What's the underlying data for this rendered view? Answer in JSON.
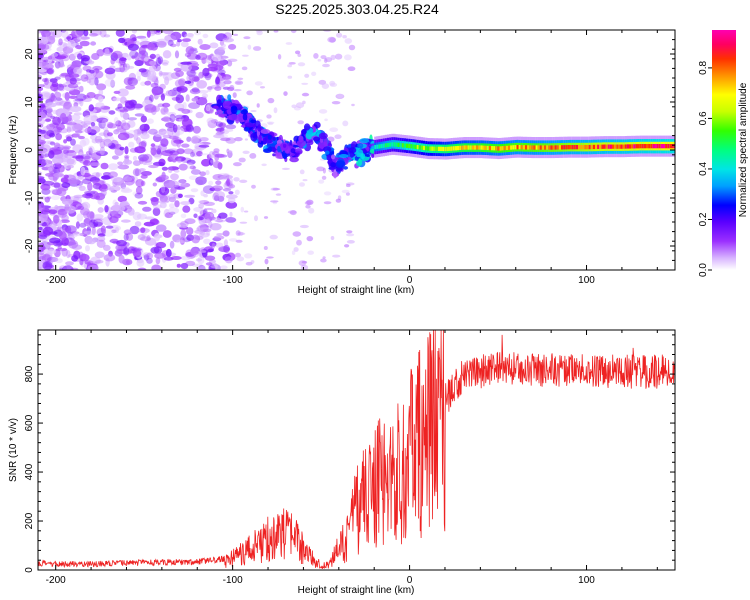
{
  "title": "S225.2025.303.04.25.R24",
  "chart_data": [
    {
      "type": "heatmap",
      "name": "spectrogram",
      "xlabel": "Height of straight line (km)",
      "ylabel": "Frequency (Hz)",
      "xlim": [
        -210,
        150
      ],
      "ylim": [
        -25,
        25
      ],
      "xticks": [
        -200,
        -100,
        0,
        100
      ],
      "yticks": [
        -20,
        -10,
        0,
        10,
        20
      ],
      "x_tick_labels": [
        "-200",
        "-100",
        "0",
        "100"
      ],
      "y_tick_labels": [
        "-20",
        "-10",
        "0",
        "10",
        "20"
      ],
      "colorbar": {
        "label": "Normalized spectral amplitude",
        "range": [
          0,
          0.95
        ],
        "ticks": [
          0.0,
          0.2,
          0.4,
          0.6,
          0.8
        ],
        "tick_labels": [
          "0.0",
          "0.2",
          "0.4",
          "0.6",
          "0.8"
        ],
        "colors": [
          "#ffffff",
          "#d8b4ff",
          "#9b30ff",
          "#5a00ff",
          "#0000ff",
          "#00a0ff",
          "#00e5e5",
          "#00ff7f",
          "#32ff00",
          "#c8ff00",
          "#ffff00",
          "#ffa000",
          "#ff3000",
          "#ff0060",
          "#ff00b0"
        ]
      },
      "ridge": [
        {
          "x": -110,
          "y": 9,
          "a": 0.25
        },
        {
          "x": -102,
          "y": 8.5,
          "a": 0.3
        },
        {
          "x": -95,
          "y": 7.5,
          "a": 0.28
        },
        {
          "x": -88,
          "y": 4.5,
          "a": 0.27
        },
        {
          "x": -80,
          "y": 2.0,
          "a": 0.3
        },
        {
          "x": -72,
          "y": 0.5,
          "a": 0.26
        },
        {
          "x": -65,
          "y": 0.0,
          "a": 0.24
        },
        {
          "x": -55,
          "y": 4.0,
          "a": 0.35
        },
        {
          "x": -48,
          "y": 1.5,
          "a": 0.3
        },
        {
          "x": -42,
          "y": -4.0,
          "a": 0.26
        },
        {
          "x": -36,
          "y": -1.0,
          "a": 0.3
        },
        {
          "x": -30,
          "y": -0.8,
          "a": 0.35
        },
        {
          "x": -20,
          "y": 0.6,
          "a": 0.42
        },
        {
          "x": -10,
          "y": 1.2,
          "a": 0.48
        },
        {
          "x": 0,
          "y": 0.8,
          "a": 0.55
        },
        {
          "x": 10,
          "y": 0.3,
          "a": 0.6
        },
        {
          "x": 20,
          "y": 0.2,
          "a": 0.65
        },
        {
          "x": 30,
          "y": 0.5,
          "a": 0.68
        },
        {
          "x": 40,
          "y": 0.5,
          "a": 0.7
        },
        {
          "x": 50,
          "y": 0.3,
          "a": 0.72
        },
        {
          "x": 60,
          "y": 0.6,
          "a": 0.74
        },
        {
          "x": 70,
          "y": 0.5,
          "a": 0.74
        },
        {
          "x": 80,
          "y": 0.5,
          "a": 0.76
        },
        {
          "x": 90,
          "y": 0.6,
          "a": 0.78
        },
        {
          "x": 100,
          "y": 0.6,
          "a": 0.8
        },
        {
          "x": 110,
          "y": 0.7,
          "a": 0.82
        },
        {
          "x": 120,
          "y": 0.7,
          "a": 0.84
        },
        {
          "x": 130,
          "y": 0.8,
          "a": 0.86
        },
        {
          "x": 140,
          "y": 0.8,
          "a": 0.88
        },
        {
          "x": 150,
          "y": 0.8,
          "a": 0.9
        }
      ]
    },
    {
      "type": "line",
      "name": "snr",
      "xlabel": "Height of straight line (km)",
      "ylabel": "SNR (10 * v/v)",
      "color": "#ee2222",
      "xlim": [
        -210,
        150
      ],
      "ylim": [
        0,
        980
      ],
      "xticks": [
        -200,
        -100,
        0,
        100
      ],
      "yticks": [
        0,
        200,
        400,
        600,
        800
      ],
      "x_tick_labels": [
        "-200",
        "-100",
        "0",
        "100"
      ],
      "y_tick_labels": [
        "0",
        "200",
        "400",
        "600",
        "800"
      ],
      "envelope": {
        "x": [
          -210,
          -180,
          -150,
          -120,
          -105,
          -95,
          -85,
          -75,
          -65,
          -58,
          -50,
          -45,
          -40,
          -35,
          -30,
          -25,
          -20,
          -15,
          -10,
          -5,
          0,
          5,
          10,
          15,
          20,
          25,
          30,
          40,
          50,
          60,
          70,
          80,
          90,
          100,
          110,
          120,
          130,
          140,
          150
        ],
        "y": [
          20,
          20,
          25,
          28,
          40,
          80,
          120,
          180,
          150,
          80,
          20,
          30,
          100,
          150,
          300,
          350,
          400,
          420,
          450,
          470,
          550,
          600,
          650,
          700,
          760,
          820,
          860,
          880,
          890,
          890,
          890,
          885,
          890,
          880,
          880,
          880,
          880,
          880,
          880
        ]
      }
    }
  ]
}
